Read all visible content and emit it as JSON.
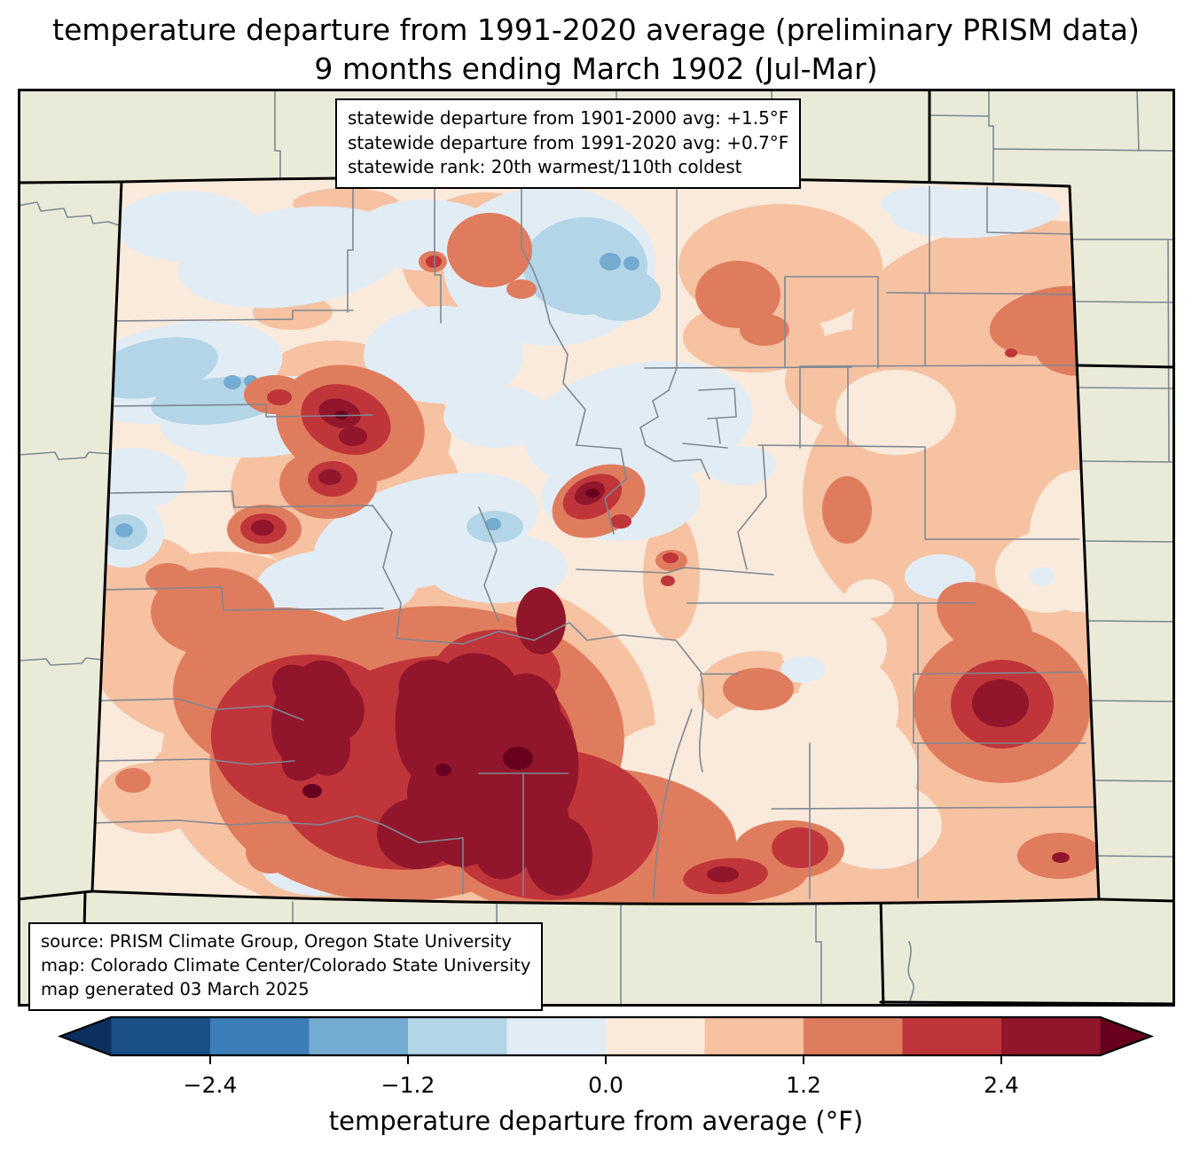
{
  "title": {
    "line1": "temperature departure from 1991-2020 average (preliminary PRISM data)",
    "line2": "9 months ending March 1902 (Jul-Mar)"
  },
  "stats_box": {
    "line1": "statewide departure from 1901-2000 avg: +1.5°F",
    "line2": "statewide departure from 1991-2020 avg: +0.7°F",
    "line3": "statewide rank: 20th warmest/110th coldest"
  },
  "source_box": {
    "line1": "source: PRISM Climate Group, Oregon State University",
    "line2": "map: Colorado Climate Center/Colorado State University",
    "line3": "map generated 03 March 2025"
  },
  "colorbar": {
    "label": "temperature departure from average (°F)",
    "ticks": [
      "−2.4",
      "−1.2",
      "0.0",
      "1.2",
      "2.4"
    ],
    "tick_values": [
      -2.4,
      -1.2,
      0.0,
      1.2,
      2.4
    ],
    "bin_edges": [
      -3.0,
      -2.4,
      -1.8,
      -1.2,
      -0.6,
      0.0,
      0.6,
      1.2,
      1.8,
      2.4,
      3.0
    ],
    "segment_colors": [
      "#1a4f88",
      "#3c7eb8",
      "#74abd0",
      "#b3d5e8",
      "#e2ecf5",
      "#faeadc",
      "#f6c2a2",
      "#e07c5e",
      "#c0353a",
      "#92162b"
    ],
    "under_color": "#0b3060",
    "over_color": "#67001f"
  },
  "map": {
    "region": "Colorado with surrounding states",
    "background_color": "#eaead9",
    "county_line_color": "#7d8893",
    "state_border_color": "#000000",
    "anomaly_summary": {
      "cool_pockets": "scattered 0 to −1.8°F pockets across northwest and north-central Colorado",
      "warmest_areas": "+2.4 to >+3.0°F over the south-central mountains and an east-central plains bullseye",
      "typical_plains": "+0.0 to +1.2°F across most of the eastern plains"
    }
  }
}
